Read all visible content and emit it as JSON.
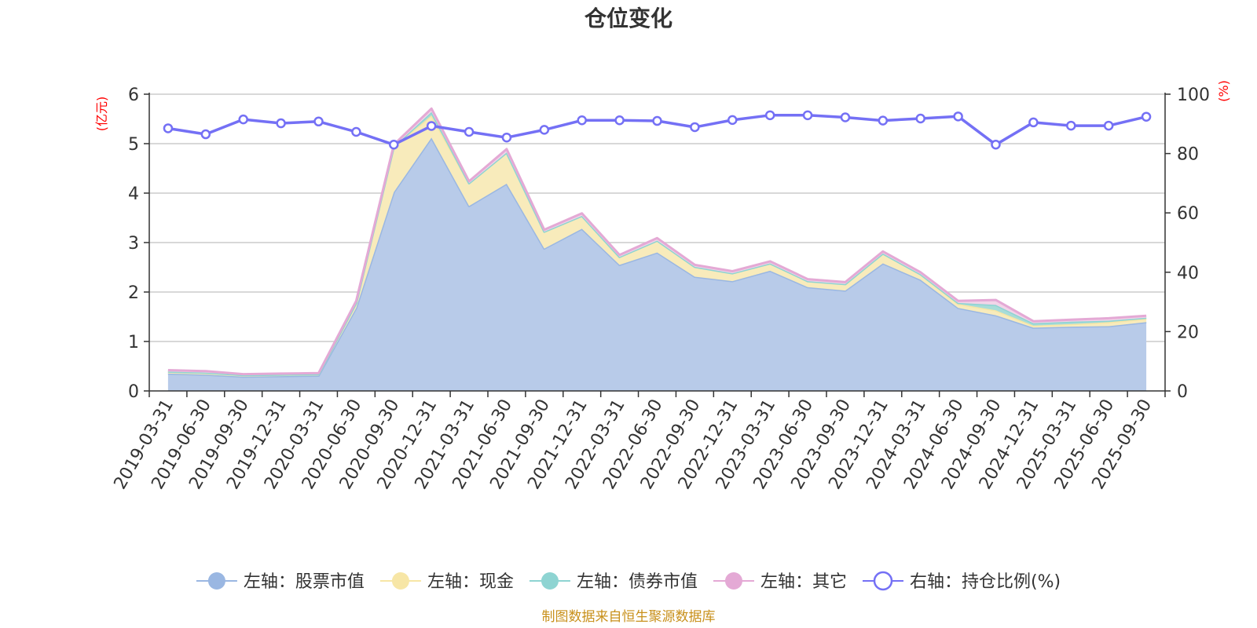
{
  "chart_data": {
    "type": "area",
    "title": "仓位变化",
    "left_unit": "(亿元)",
    "right_unit": "(%)",
    "source": "制图数据来自恒生聚源数据库",
    "categories": [
      "2019-03-31",
      "2019-06-30",
      "2019-09-30",
      "2019-12-31",
      "2020-03-31",
      "2020-06-30",
      "2020-09-30",
      "2020-12-31",
      "2021-03-31",
      "2021-06-30",
      "2021-09-30",
      "2021-12-31",
      "2022-03-31",
      "2022-06-30",
      "2022-09-30",
      "2022-12-31",
      "2023-03-31",
      "2023-06-30",
      "2023-09-30",
      "2023-12-31",
      "2024-03-31",
      "2024-06-30",
      "2024-09-30",
      "2024-12-31",
      "2025-03-31",
      "2025-06-30",
      "2025-09-30"
    ],
    "left_axis": {
      "min": 0,
      "max": 6,
      "ticks": [
        0,
        1,
        2,
        3,
        4,
        5,
        6
      ]
    },
    "right_axis": {
      "min": 0,
      "max": 100,
      "ticks": [
        0,
        20,
        40,
        60,
        80,
        100
      ]
    },
    "stacked_series": [
      {
        "name": "左轴：股票市值",
        "color": "#9ab7e2",
        "fill": "#b8cbe9",
        "values": [
          0.35,
          0.33,
          0.29,
          0.3,
          0.31,
          1.68,
          4.02,
          5.12,
          3.74,
          4.19,
          2.88,
          3.28,
          2.55,
          2.8,
          2.31,
          2.22,
          2.43,
          2.1,
          2.03,
          2.58,
          2.25,
          1.68,
          1.53,
          1.28,
          1.3,
          1.31,
          1.39
        ]
      },
      {
        "name": "左轴：现金",
        "color": "#f7e6a6",
        "fill": "#f8ebbb",
        "values": [
          0.04,
          0.04,
          0.03,
          0.03,
          0.03,
          0.1,
          0.92,
          0.45,
          0.46,
          0.63,
          0.34,
          0.26,
          0.16,
          0.24,
          0.2,
          0.16,
          0.15,
          0.12,
          0.13,
          0.2,
          0.11,
          0.08,
          0.1,
          0.04,
          0.05,
          0.08,
          0.07
        ]
      },
      {
        "name": "左轴：债券市值",
        "color": "#8ed4d2",
        "fill": "#a8dcd8",
        "values": [
          0,
          0,
          0,
          0,
          0,
          0,
          0,
          0.07,
          0,
          0,
          0,
          0,
          0,
          0,
          0,
          0,
          0,
          0,
          0,
          0,
          0,
          0.02,
          0.11,
          0.05,
          0.05,
          0.03,
          0.02
        ]
      },
      {
        "name": "左轴：其它",
        "color": "#e4a9d5",
        "fill": "#f1d4e8",
        "values": [
          0.03,
          0.03,
          0.02,
          0.02,
          0.02,
          0.04,
          0.04,
          0.07,
          0.04,
          0.07,
          0.04,
          0.05,
          0.04,
          0.05,
          0.04,
          0.04,
          0.04,
          0.04,
          0.04,
          0.04,
          0.04,
          0.04,
          0.1,
          0.04,
          0.04,
          0.05,
          0.04
        ]
      }
    ],
    "line_series": {
      "name": "右轴：持仓比例(%)",
      "color": "#7470f5",
      "values": [
        88.5,
        86.5,
        91.5,
        90.2,
        90.8,
        87.3,
        83.0,
        89.3,
        87.3,
        85.4,
        88.0,
        91.2,
        91.2,
        91.0,
        88.9,
        91.3,
        92.9,
        92.9,
        92.2,
        91.1,
        91.8,
        92.5,
        83.0,
        90.5,
        89.4,
        89.4,
        92.4
      ]
    },
    "legend": [
      "左轴：股票市值",
      "左轴：现金",
      "左轴：债券市值",
      "左轴：其它",
      "右轴：持仓比例(%)"
    ],
    "grid": true,
    "legend_position": "bottom"
  }
}
